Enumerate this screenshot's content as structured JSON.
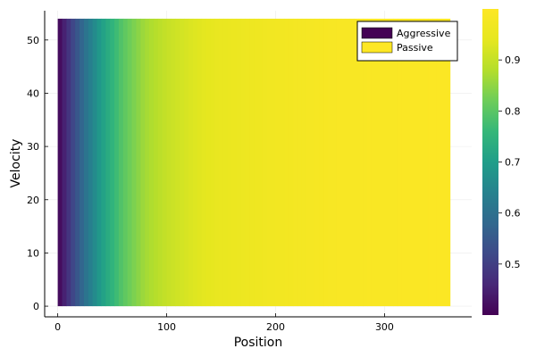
{
  "chart_data": {
    "type": "heatmap",
    "title": "",
    "xlabel": "Position",
    "ylabel": "Velocity",
    "xlim": [
      -12,
      380
    ],
    "ylim": [
      -2,
      55.5
    ],
    "xticks": [
      0,
      100,
      200,
      300
    ],
    "yticks": [
      0,
      10,
      20,
      30,
      40,
      50
    ],
    "grid": true,
    "x_extent": [
      0,
      360
    ],
    "y_extent": [
      0,
      54
    ],
    "profile": {
      "position": [
        0,
        12,
        25,
        40,
        60,
        80,
        100,
        125,
        150,
        200,
        250,
        300,
        360
      ],
      "value": [
        0.4,
        0.5,
        0.6,
        0.7,
        0.8,
        0.865,
        0.9,
        0.93,
        0.95,
        0.97,
        0.985,
        0.99,
        0.995
      ]
    },
    "colorbar": {
      "min": 0.4,
      "max": 1.0,
      "ticks": [
        0.5,
        0.6,
        0.7,
        0.8,
        0.9
      ],
      "colormap": "viridis"
    },
    "legend": {
      "position": "top-right",
      "entries": [
        {
          "label": "Aggressive",
          "color": "#440154"
        },
        {
          "label": "Passive",
          "color": "#fde725"
        }
      ]
    }
  }
}
